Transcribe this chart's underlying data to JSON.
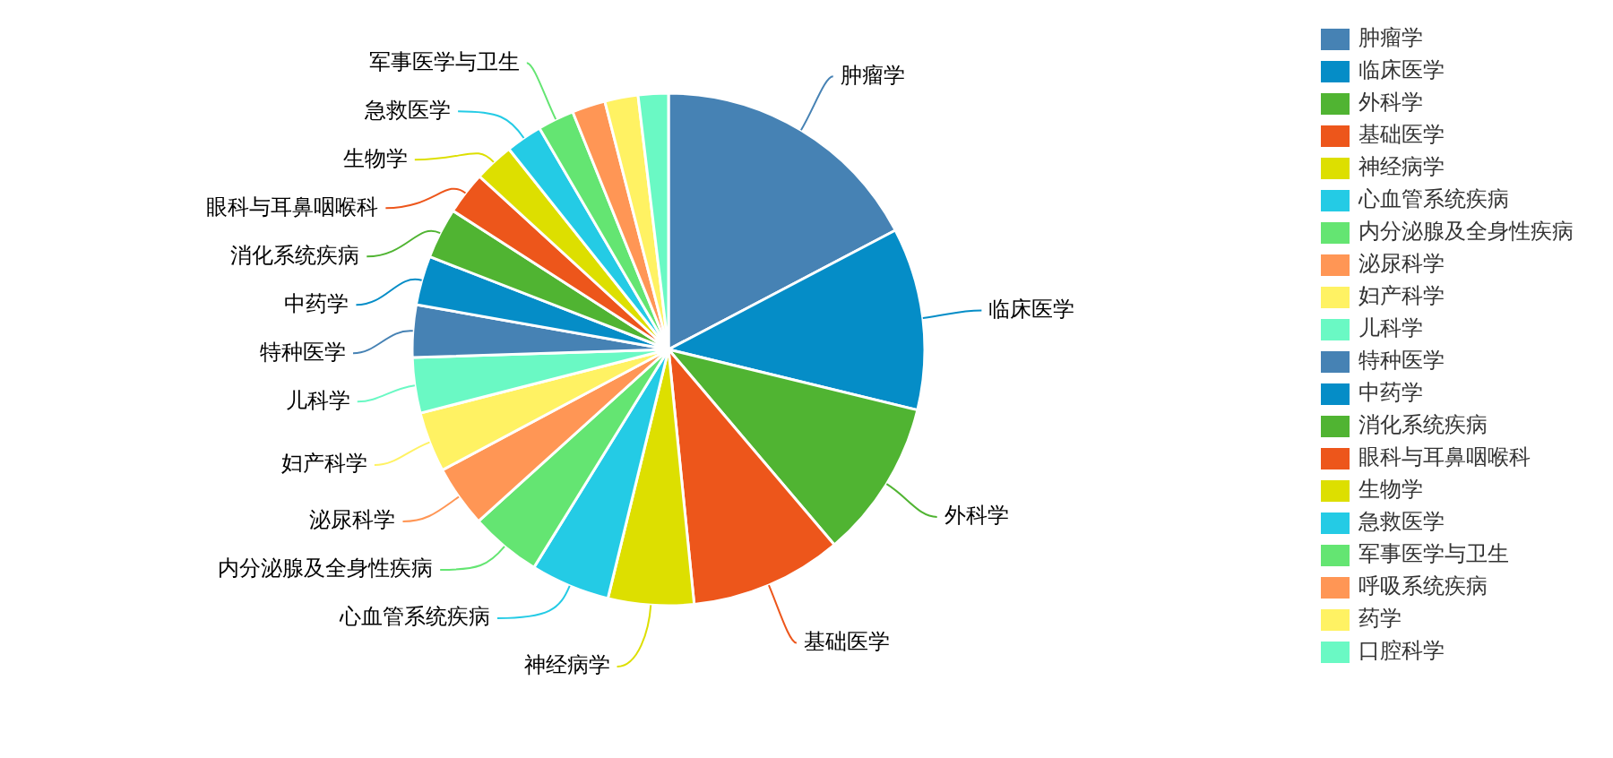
{
  "chart_data": {
    "type": "pie",
    "categories": [
      "肿瘤学",
      "临床医学",
      "外科学",
      "基础医学",
      "神经病学",
      "心血管系统疾病",
      "内分泌腺及全身性疾病",
      "泌尿科学",
      "妇产科学",
      "儿科学",
      "特种医学",
      "中药学",
      "消化系统疾病",
      "眼科与耳鼻咽喉科",
      "生物学",
      "急救医学",
      "军事医学与卫生",
      "呼吸系统疾病",
      "药学",
      "口腔科学"
    ],
    "values": [
      17.3,
      11.5,
      10.0,
      9.6,
      5.4,
      5.0,
      4.5,
      3.9,
      3.8,
      3.5,
      3.3,
      3.1,
      3.2,
      2.7,
      2.5,
      2.3,
      2.3,
      2.1,
      2.1,
      1.9
    ],
    "colors": [
      "#4682b4",
      "#058dc7",
      "#50b432",
      "#ed561b",
      "#dddf00",
      "#24cbe5",
      "#64e572",
      "#ff9655",
      "#fff263",
      "#6af9c4",
      "#4682b4",
      "#058dc7",
      "#50b432",
      "#ed561b",
      "#dddf00",
      "#24cbe5",
      "#64e572",
      "#ff9655",
      "#fff263",
      "#6af9c4"
    ],
    "legend": "right"
  }
}
